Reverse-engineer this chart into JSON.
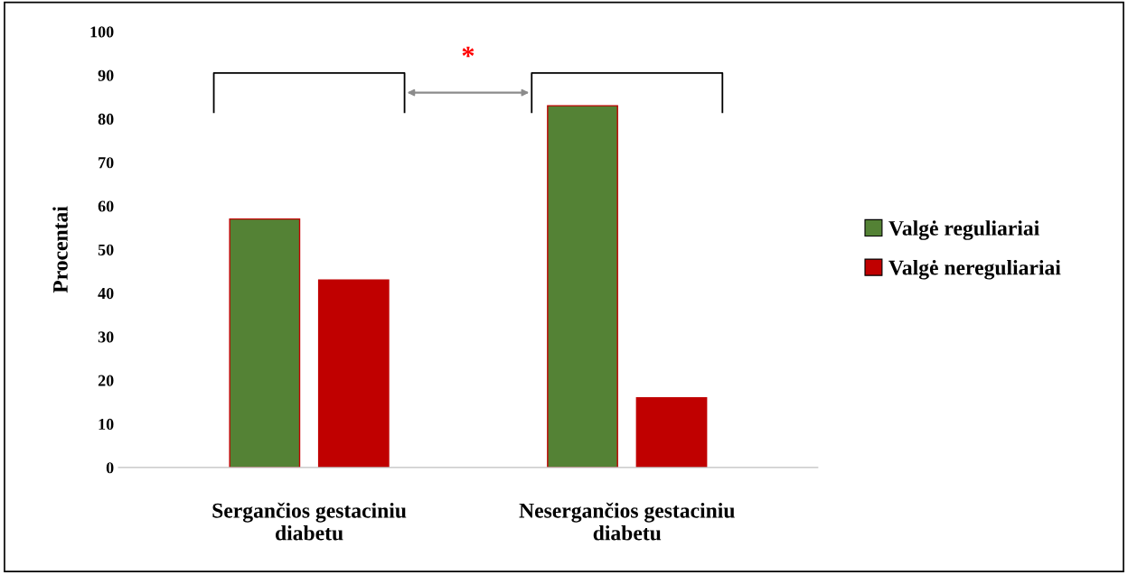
{
  "chart_data": {
    "type": "bar",
    "ylabel": "Procentai",
    "categories": [
      "Sergančios gestaciniu diabetu",
      "Nesergančios gestaciniu diabetu"
    ],
    "series": [
      {
        "name": "Valgė reguliariai",
        "color": "#548235",
        "values": [
          57,
          83
        ]
      },
      {
        "name": "Valgė nereguliariai",
        "color": "#c00000",
        "values": [
          43,
          16
        ]
      }
    ],
    "ylim": [
      0,
      100
    ],
    "yticks": [
      0,
      10,
      20,
      30,
      40,
      50,
      60,
      70,
      80,
      90,
      100
    ],
    "grid": false,
    "legend": "right",
    "annotations": [
      "*"
    ]
  }
}
